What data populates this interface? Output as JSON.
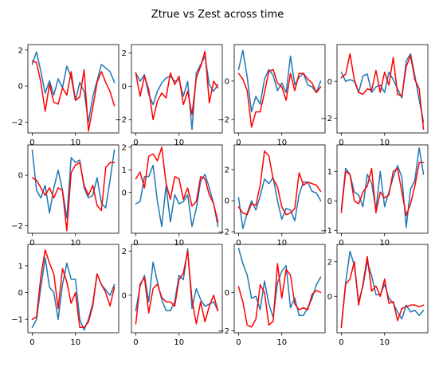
{
  "title": "Ztrue vs Zest across time",
  "colors": {
    "true": "#1f77b4",
    "est": "#ff0000"
  },
  "chart_data": [
    {
      "type": "line",
      "xlim": [
        -1,
        20
      ],
      "ylim": [
        -2.6,
        2.3
      ],
      "yticks": [
        -2,
        0,
        2
      ],
      "xticks": [
        0,
        10
      ],
      "series": [
        {
          "key": "true",
          "values": [
            1.2,
            1.9,
            0.8,
            -0.4,
            0.3,
            -0.5,
            0.4,
            -0.1,
            1.1,
            0.5,
            -0.8,
            0.2,
            -0.3,
            -2.0,
            -0.6,
            0.3,
            1.2,
            1.0,
            0.8,
            0.2
          ]
        },
        {
          "key": "est",
          "values": [
            1.4,
            1.3,
            0.2,
            -1.4,
            0.1,
            -0.9,
            -1.0,
            -0.1,
            -0.5,
            0.8,
            -0.8,
            -0.6,
            0.9,
            -2.5,
            -1.2,
            0.2,
            0.8,
            0.2,
            -0.3,
            -1.1
          ]
        }
      ]
    },
    {
      "type": "line",
      "xlim": [
        -1,
        20
      ],
      "ylim": [
        -2.8,
        2.5
      ],
      "yticks": [
        -2,
        0,
        2
      ],
      "xticks": [
        0,
        10
      ],
      "series": [
        {
          "key": "true",
          "values": [
            0.8,
            0.3,
            0.7,
            -0.5,
            -1.1,
            -0.3,
            0.2,
            0.5,
            0.6,
            0.3,
            0.4,
            -0.6,
            0.3,
            -2.6,
            0.8,
            1.3,
            1.8,
            0.1,
            -0.3,
            0.1
          ]
        },
        {
          "key": "est",
          "values": [
            0.8,
            -0.6,
            0.6,
            -0.2,
            -2.0,
            -0.9,
            -0.4,
            -0.7,
            0.8,
            0.1,
            0.6,
            -1.1,
            -0.3,
            -1.7,
            0.5,
            1.2,
            2.1,
            -1.0,
            0.3,
            -0.1
          ]
        }
      ]
    },
    {
      "type": "line",
      "xlim": [
        -1,
        20
      ],
      "ylim": [
        -2.7,
        1.9
      ],
      "yticks": [
        -2,
        0
      ],
      "xticks": [
        0,
        10
      ],
      "series": [
        {
          "key": "true",
          "values": [
            0.6,
            1.6,
            0.2,
            -1.6,
            -0.8,
            -1.2,
            0.1,
            0.6,
            0.3,
            -0.5,
            -0.1,
            -0.6,
            1.3,
            -0.2,
            0.2,
            0.4,
            -0.2,
            -0.3,
            -0.6,
            0.0
          ]
        },
        {
          "key": "est",
          "values": [
            0.4,
            0.1,
            -0.5,
            -2.4,
            -1.6,
            -1.6,
            -0.6,
            0.5,
            0.6,
            -0.1,
            -0.3,
            -1.0,
            0.4,
            -0.5,
            0.4,
            0.4,
            0.1,
            -0.1,
            -0.6,
            -0.3
          ]
        }
      ]
    },
    {
      "type": "line",
      "xlim": [
        -1,
        20
      ],
      "ylim": [
        -2.8,
        2.0
      ],
      "yticks": [
        -2,
        0
      ],
      "xticks": [
        0,
        10
      ],
      "series": [
        {
          "key": "true",
          "values": [
            0.5,
            0.0,
            0.1,
            0.0,
            -0.6,
            0.3,
            0.4,
            -0.6,
            -0.3,
            -0.2,
            -0.6,
            0.5,
            0.1,
            -0.4,
            -0.9,
            1.1,
            1.5,
            0.3,
            -1.0,
            -2.2
          ]
        },
        {
          "key": "est",
          "values": [
            0.2,
            0.4,
            1.5,
            0.1,
            -0.6,
            -0.7,
            -0.4,
            -0.5,
            0.6,
            -0.6,
            0.5,
            -0.2,
            1.3,
            -0.7,
            -0.8,
            0.8,
            1.4,
            0.1,
            -0.4,
            -2.6
          ]
        }
      ]
    },
    {
      "type": "line",
      "xlim": [
        -1,
        20
      ],
      "ylim": [
        -2.3,
        1.2
      ],
      "yticks": [
        -2,
        0
      ],
      "xticks": [
        0,
        10
      ],
      "series": [
        {
          "key": "true",
          "values": [
            1.0,
            -0.6,
            -0.9,
            -0.4,
            -1.5,
            -0.5,
            0.2,
            -0.6,
            -1.7,
            0.7,
            0.5,
            0.6,
            -0.5,
            -0.9,
            -0.8,
            -0.1,
            -1.1,
            -1.3,
            -0.2,
            1.0
          ]
        },
        {
          "key": "est",
          "values": [
            -0.1,
            -0.2,
            -0.5,
            -0.8,
            -0.5,
            -0.9,
            -0.5,
            -0.6,
            -2.2,
            0.1,
            0.4,
            0.5,
            -0.4,
            -0.8,
            -0.4,
            -1.2,
            -1.4,
            0.3,
            0.5,
            0.5
          ]
        }
      ]
    },
    {
      "type": "line",
      "xlim": [
        -1,
        20
      ],
      "ylim": [
        -1.8,
        2.1
      ],
      "yticks": [
        0,
        1,
        2
      ],
      "xticks": [
        0,
        10
      ],
      "series": [
        {
          "key": "true",
          "values": [
            -0.5,
            -0.4,
            0.7,
            0.7,
            1.2,
            -0.4,
            -1.5,
            0.3,
            -1.3,
            -0.1,
            -0.5,
            -0.4,
            -0.1,
            -1.5,
            -0.7,
            0.5,
            0.8,
            0.2,
            -0.5,
            -1.5
          ]
        },
        {
          "key": "est",
          "values": [
            0.6,
            0.9,
            0.2,
            1.6,
            1.7,
            1.4,
            2.0,
            0.4,
            -0.3,
            0.7,
            0.6,
            -0.3,
            0.2,
            -0.6,
            -0.4,
            0.7,
            0.6,
            -0.1,
            -0.5,
            -1.3
          ]
        }
      ]
    },
    {
      "type": "line",
      "xlim": [
        -1,
        20
      ],
      "ylim": [
        -2.1,
        3.6
      ],
      "yticks": [
        -2,
        0,
        2
      ],
      "xticks": [
        0,
        10
      ],
      "series": [
        {
          "key": "true",
          "values": [
            0.2,
            -1.8,
            -0.8,
            0.0,
            -0.6,
            0.3,
            1.4,
            1.1,
            1.5,
            0.0,
            -1.2,
            -0.5,
            -0.6,
            -1.3,
            0.4,
            1.2,
            1.2,
            0.6,
            0.5,
            0.0
          ]
        },
        {
          "key": "est",
          "values": [
            -0.4,
            -0.8,
            -0.9,
            -0.2,
            -0.3,
            1.0,
            3.2,
            2.9,
            1.4,
            0.9,
            -0.4,
            -0.9,
            -0.8,
            -0.5,
            1.8,
            1.0,
            1.2,
            1.1,
            1.0,
            0.6
          ]
        }
      ]
    },
    {
      "type": "line",
      "xlim": [
        -1,
        20
      ],
      "ylim": [
        -1.1,
        1.9
      ],
      "yticks": [
        -1,
        0,
        1
      ],
      "xticks": [
        0,
        10
      ],
      "series": [
        {
          "key": "true",
          "values": [
            -0.3,
            1.1,
            0.9,
            0.3,
            0.2,
            -0.2,
            0.9,
            0.6,
            -0.3,
            1.0,
            -0.2,
            0.3,
            0.8,
            1.2,
            0.8,
            -0.9,
            0.4,
            0.7,
            1.8,
            0.9
          ]
        },
        {
          "key": "est",
          "values": [
            -0.4,
            1.0,
            0.9,
            0.0,
            -0.1,
            0.3,
            0.5,
            1.1,
            -0.4,
            0.3,
            0.1,
            0.2,
            1.0,
            1.1,
            0.3,
            -0.5,
            -0.1,
            0.5,
            1.3,
            1.3
          ]
        }
      ]
    },
    {
      "type": "line",
      "xlim": [
        -1,
        20
      ],
      "ylim": [
        -1.5,
        1.8
      ],
      "yticks": [
        -1,
        0,
        1
      ],
      "xticks": [
        0,
        10
      ],
      "series": [
        {
          "key": "true",
          "values": [
            -1.3,
            -1.0,
            0.2,
            1.3,
            0.2,
            0.0,
            -1.0,
            0.3,
            1.1,
            0.5,
            0.5,
            -1.0,
            -1.4,
            -1.0,
            -0.4,
            0.7,
            0.3,
            0.1,
            -0.1,
            0.3
          ]
        },
        {
          "key": "est",
          "values": [
            -1.0,
            -0.9,
            0.6,
            1.6,
            1.1,
            0.7,
            -0.6,
            0.9,
            0.4,
            -0.4,
            0.0,
            -1.3,
            -1.3,
            -1.1,
            -0.5,
            0.7,
            0.3,
            0.0,
            -0.5,
            0.2
          ]
        }
      ]
    },
    {
      "type": "line",
      "xlim": [
        -1,
        20
      ],
      "ylim": [
        -1.7,
        2.3
      ],
      "yticks": [
        0,
        2
      ],
      "xticks": [
        0,
        10
      ],
      "series": [
        {
          "key": "true",
          "values": [
            -0.7,
            0.4,
            0.9,
            -0.3,
            1.5,
            0.6,
            -0.2,
            -0.7,
            -0.7,
            -0.3,
            0.9,
            0.7,
            2.1,
            -0.6,
            0.3,
            -0.2,
            -0.5,
            -0.4,
            -0.3,
            -0.7
          ]
        },
        {
          "key": "est",
          "values": [
            -1.3,
            0.5,
            0.8,
            -0.8,
            0.3,
            0.5,
            -0.1,
            -0.3,
            -0.3,
            -0.5,
            0.7,
            1.0,
            2.0,
            -0.2,
            -1.3,
            -0.3,
            -1.2,
            -0.5,
            0.0,
            -0.7
          ]
        }
      ]
    },
    {
      "type": "line",
      "xlim": [
        -1,
        20
      ],
      "ylim": [
        -2.1,
        2.5
      ],
      "yticks": [
        -2,
        0
      ],
      "xticks": [
        0,
        10
      ],
      "series": [
        {
          "key": "true",
          "values": [
            2.3,
            1.5,
            0.9,
            -0.3,
            -0.2,
            -0.9,
            0.6,
            -0.6,
            -1.3,
            0.5,
            1.1,
            1.4,
            -0.8,
            -0.3,
            -1.2,
            -1.2,
            -0.8,
            -0.3,
            0.4,
            0.8
          ]
        },
        {
          "key": "est",
          "values": [
            0.3,
            -0.5,
            -1.7,
            -1.8,
            -1.4,
            0.4,
            0.0,
            -1.7,
            -1.5,
            1.5,
            -0.3,
            1.2,
            0.9,
            -0.6,
            -0.9,
            -0.8,
            -0.9,
            -0.1,
            0.1,
            0.0
          ]
        }
      ]
    },
    {
      "type": "line",
      "xlim": [
        -1,
        20
      ],
      "ylim": [
        -2.1,
        3.0
      ],
      "yticks": [
        0,
        2
      ],
      "xticks": [
        0,
        10
      ],
      "series": [
        {
          "key": "true",
          "values": [
            -1.7,
            0.8,
            2.6,
            1.8,
            -0.3,
            0.6,
            2.0,
            1.2,
            0.1,
            0.1,
            0.7,
            -0.1,
            -0.4,
            -0.9,
            -1.3,
            -0.5,
            -0.9,
            -0.8,
            -1.1,
            -0.8
          ]
        },
        {
          "key": "est",
          "values": [
            -1.8,
            0.7,
            1.0,
            2.0,
            -0.5,
            0.7,
            2.3,
            0.3,
            0.6,
            0.0,
            1.0,
            -0.4,
            -0.3,
            -1.4,
            -0.7,
            -0.6,
            -0.5,
            -0.5,
            -0.6,
            -0.5
          ]
        }
      ]
    }
  ]
}
